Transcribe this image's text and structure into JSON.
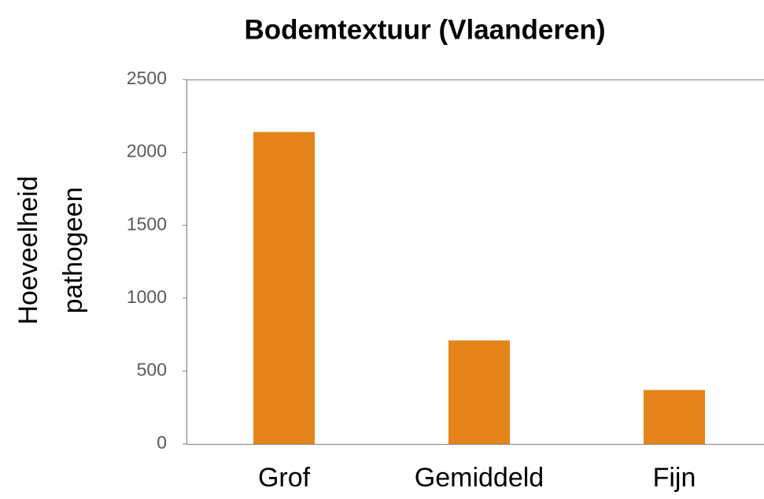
{
  "chart_data": {
    "type": "bar",
    "title": "Bodemtextuur (Vlaanderen)",
    "y_label_lines": [
      "Hoeveelheid",
      "pathogeen"
    ],
    "categories": [
      "Grof",
      "Gemiddeld",
      "Fijn"
    ],
    "values": [
      2140,
      710,
      370
    ],
    "color": "#e5841a",
    "ylim": [
      0,
      2500
    ],
    "yticks": [
      0,
      500,
      1000,
      1500,
      2000,
      2500
    ],
    "grid": false
  }
}
